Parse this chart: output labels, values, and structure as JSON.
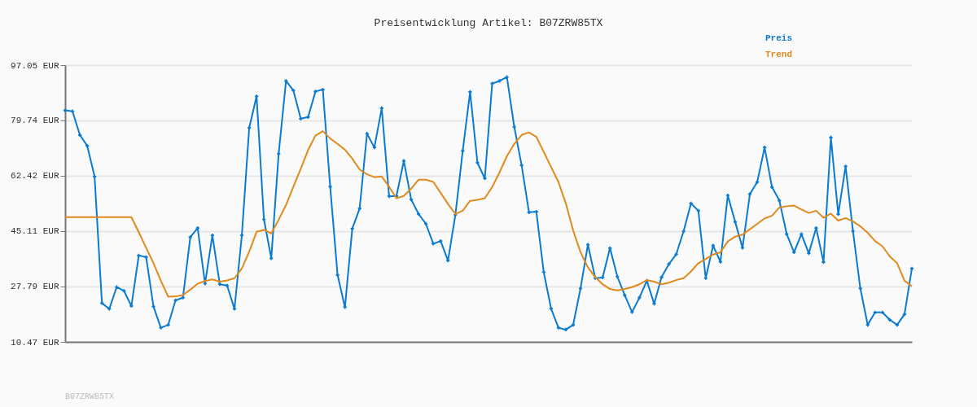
{
  "chart_data": {
    "type": "line",
    "title": "Preisentwicklung Artikel: B07ZRW85TX",
    "categories": [
      null,
      null,
      null,
      null,
      null,
      null,
      null,
      null,
      null,
      null,
      null,
      null,
      null,
      null,
      null,
      null,
      null,
      null,
      null,
      null,
      null,
      null,
      null,
      null,
      null,
      null,
      null,
      null,
      null,
      null,
      null,
      null,
      null,
      null,
      null,
      null,
      null,
      null,
      null,
      null,
      null,
      null,
      null,
      null,
      null,
      null,
      null,
      null,
      null,
      null,
      null,
      null,
      null,
      null,
      null,
      null,
      null,
      null,
      null,
      null,
      null,
      null,
      null,
      null,
      null,
      null,
      null,
      null,
      null,
      null,
      null,
      null,
      null,
      null,
      null,
      null,
      null,
      null,
      null,
      null,
      null,
      null,
      null,
      null,
      null,
      null,
      null,
      null,
      null,
      null,
      null,
      null,
      null,
      null,
      null,
      null,
      null,
      null,
      null,
      null,
      null,
      null,
      null,
      null,
      null,
      null,
      null,
      null,
      null,
      null,
      null,
      null,
      null,
      null,
      null,
      null
    ],
    "series": [
      {
        "name": "Preis",
        "color": "#0a7bd0",
        "marker": "cross",
        "values": [
          82.9,
          82.6,
          75.2,
          71.8,
          62.2,
          22.6,
          20.8,
          27.6,
          26.4,
          21.7,
          37.5,
          37.0,
          21.5,
          14.9,
          15.8,
          23.5,
          24.3,
          43.2,
          46.1,
          28.7,
          43.8,
          28.5,
          28.1,
          20.8,
          43.8,
          77.4,
          87.3,
          48.8,
          36.6,
          69.3,
          92.1,
          89.1,
          80.3,
          80.8,
          88.8,
          89.4,
          59.0,
          31.4,
          21.3,
          45.9,
          52.2,
          75.6,
          71.3,
          83.6,
          56.0,
          56.1,
          67.1,
          55.0,
          50.5,
          47.4,
          41.2,
          42.0,
          35.9,
          50.2,
          70.2,
          88.7,
          66.5,
          61.6,
          91.3,
          92.1,
          93.3,
          77.7,
          65.7,
          51.0,
          51.2,
          32.3,
          20.9,
          14.9,
          14.3,
          15.8,
          27.2,
          40.9,
          30.4,
          30.6,
          39.8,
          30.9,
          25.1,
          19.8,
          24.3,
          29.6,
          22.4,
          30.7,
          34.8,
          37.9,
          45.1,
          53.8,
          51.5,
          30.4,
          40.6,
          35.5,
          56.3,
          48.0,
          39.9,
          56.7,
          60.5,
          71.3,
          58.9,
          54.7,
          44.2,
          38.5,
          44.2,
          38.2,
          46.1,
          35.4,
          74.4,
          50.4,
          65.4,
          45.1,
          27.2,
          15.8,
          19.7,
          19.7,
          17.4,
          15.8,
          19.1,
          33.4
        ]
      },
      {
        "name": "Trend",
        "color": "#e08a1e",
        "marker": "none",
        "values": [
          49.5,
          49.5,
          49.5,
          49.5,
          49.5,
          49.5,
          49.5,
          49.5,
          49.5,
          49.5,
          44.8,
          39.9,
          35.1,
          29.6,
          24.6,
          24.7,
          25.1,
          26.8,
          28.7,
          29.5,
          30.0,
          29.3,
          29.7,
          30.4,
          33.4,
          38.7,
          44.9,
          45.5,
          44.4,
          48.7,
          53.3,
          59.0,
          64.6,
          70.5,
          75.0,
          76.4,
          74.1,
          72.4,
          70.6,
          67.8,
          64.4,
          62.9,
          62.0,
          62.2,
          59.0,
          55.4,
          56.1,
          58.4,
          61.2,
          61.2,
          60.5,
          57.1,
          53.6,
          50.5,
          51.5,
          54.6,
          54.9,
          55.4,
          58.9,
          63.5,
          68.6,
          72.4,
          75.2,
          76.0,
          74.6,
          69.9,
          65.2,
          60.5,
          53.8,
          45.3,
          38.5,
          33.8,
          30.7,
          28.5,
          27.0,
          26.6,
          27.0,
          27.6,
          28.5,
          29.8,
          29.3,
          28.5,
          29.0,
          29.8,
          30.4,
          32.5,
          35.1,
          36.4,
          37.8,
          38.5,
          41.9,
          43.4,
          44.0,
          45.7,
          47.4,
          49.1,
          49.9,
          52.5,
          52.9,
          53.1,
          51.9,
          50.8,
          51.5,
          49.3,
          50.6,
          48.4,
          49.2,
          48.2,
          46.6,
          44.6,
          42.0,
          40.4,
          37.2,
          35.1,
          29.6,
          27.9
        ]
      }
    ],
    "ylim": [
      10.47,
      97.05
    ],
    "yticks": [
      {
        "value": 10.47,
        "label": "10.47 EUR"
      },
      {
        "value": 27.79,
        "label": "27.79 EUR"
      },
      {
        "value": 45.11,
        "label": "45.11 EUR"
      },
      {
        "value": 62.42,
        "label": "62.42 EUR"
      },
      {
        "value": 79.74,
        "label": "79.74 EUR"
      },
      {
        "value": 97.05,
        "label": "97.05 EUR"
      }
    ],
    "grid": "y",
    "legend": "top right",
    "tick_labels": "y",
    "line_style": "solid",
    "annotations": [
      "B07ZRW85TX"
    ]
  }
}
